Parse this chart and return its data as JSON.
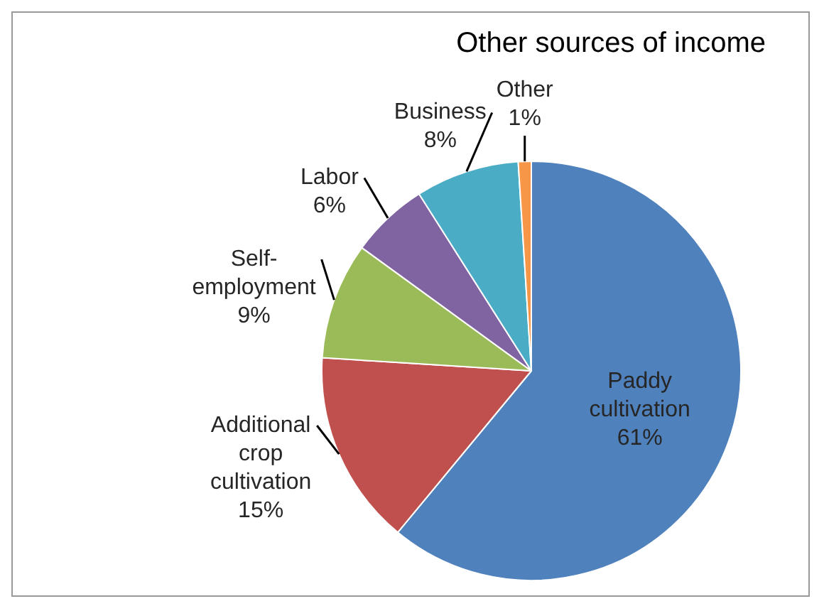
{
  "chart_data": {
    "type": "pie",
    "title": "Other sources of income",
    "categories": [
      "Paddy cultivation",
      "Additional crop cultivation",
      "Self-employment",
      "Labor",
      "Business",
      "Other"
    ],
    "values": [
      61,
      15,
      9,
      6,
      8,
      1
    ],
    "value_labels": [
      "61%",
      "15%",
      "9%",
      "6%",
      "8%",
      "1%"
    ],
    "colors": [
      "#4f81bd",
      "#c0504d",
      "#9bbb59",
      "#8064a2",
      "#4bacc6",
      "#f79646"
    ],
    "legend": false
  }
}
